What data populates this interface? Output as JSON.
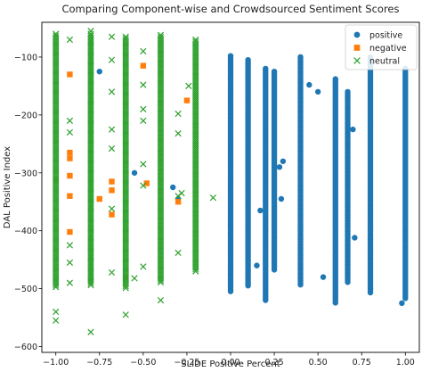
{
  "chart_data": {
    "type": "scatter",
    "title": "Comparing Component-wise and Crowdsourced Sentiment Scores",
    "xlabel": "SLIDE Positive Percent",
    "ylabel": "DAL Positive Index",
    "xlim": [
      -1.08,
      1.08
    ],
    "ylim": [
      -610,
      -40
    ],
    "x_ticks": [
      -1.0,
      -0.75,
      -0.5,
      -0.25,
      0.0,
      0.25,
      0.5,
      0.75,
      1.0
    ],
    "x_tick_labels": [
      "−1.00",
      "−0.75",
      "−0.50",
      "−0.25",
      "0.00",
      "0.25",
      "0.50",
      "0.75",
      "1.00"
    ],
    "y_ticks": [
      -100,
      -200,
      -300,
      -400,
      -500,
      -600
    ],
    "y_tick_labels": [
      "−100",
      "−200",
      "−300",
      "−400",
      "−500",
      "−600"
    ],
    "grid": false,
    "legend_position": "top-right",
    "series": [
      {
        "name": "positive",
        "color": "#1f77b4",
        "marker": "circle",
        "columns": [
          {
            "x": 0.0,
            "y_top": -98,
            "y_bottom": -505
          },
          {
            "x": 0.1,
            "y_top": -105,
            "y_bottom": -495
          },
          {
            "x": 0.2,
            "y_top": -120,
            "y_bottom": -520
          },
          {
            "x": 0.25,
            "y_top": -125,
            "y_bottom": -470
          },
          {
            "x": 0.4,
            "y_top": -100,
            "y_bottom": -495
          },
          {
            "x": 0.6,
            "y_top": -138,
            "y_bottom": -525
          },
          {
            "x": 0.8,
            "y_top": -100,
            "y_bottom": -510
          },
          {
            "x": 0.67,
            "y_top": -160,
            "y_bottom": -490
          },
          {
            "x": 1.0,
            "y_top": -120,
            "y_bottom": -518
          }
        ],
        "points": [
          {
            "x": -0.75,
            "y": -125
          },
          {
            "x": -0.55,
            "y": -300
          },
          {
            "x": -0.3,
            "y": -345
          },
          {
            "x": -0.33,
            "y": -325
          },
          {
            "x": 0.17,
            "y": -365
          },
          {
            "x": 0.15,
            "y": -460
          },
          {
            "x": 0.3,
            "y": -280
          },
          {
            "x": 0.28,
            "y": -290
          },
          {
            "x": 0.29,
            "y": -345
          },
          {
            "x": 0.5,
            "y": -160
          },
          {
            "x": 0.45,
            "y": -148
          },
          {
            "x": 0.53,
            "y": -480
          },
          {
            "x": 0.7,
            "y": -225
          },
          {
            "x": 0.71,
            "y": -412
          },
          {
            "x": 0.98,
            "y": -525
          }
        ]
      },
      {
        "name": "negative",
        "color": "#ff7f0e",
        "marker": "square",
        "points": [
          {
            "x": -0.92,
            "y": -130
          },
          {
            "x": -0.92,
            "y": -265
          },
          {
            "x": -0.92,
            "y": -275
          },
          {
            "x": -0.92,
            "y": -305
          },
          {
            "x": -0.92,
            "y": -340
          },
          {
            "x": -0.92,
            "y": -402
          },
          {
            "x": -0.75,
            "y": -345
          },
          {
            "x": -0.68,
            "y": -315
          },
          {
            "x": -0.68,
            "y": -330
          },
          {
            "x": -0.68,
            "y": -372
          },
          {
            "x": -0.6,
            "y": -480
          },
          {
            "x": -0.5,
            "y": -115
          },
          {
            "x": -0.48,
            "y": -318
          },
          {
            "x": -0.3,
            "y": -350
          },
          {
            "x": -0.25,
            "y": -175
          },
          {
            "x": -1.0,
            "y": -312
          }
        ]
      },
      {
        "name": "neutral",
        "color": "#2ca02c",
        "marker": "x",
        "columns": [
          {
            "x": -1.0,
            "y_top": -60,
            "y_bottom": -500
          },
          {
            "x": -0.8,
            "y_top": -60,
            "y_bottom": -495
          },
          {
            "x": -0.6,
            "y_top": -65,
            "y_bottom": -500
          },
          {
            "x": -0.4,
            "y_top": -62,
            "y_bottom": -490
          },
          {
            "x": -0.2,
            "y_top": -70,
            "y_bottom": -470
          }
        ],
        "points": [
          {
            "x": -1.0,
            "y": -540
          },
          {
            "x": -1.0,
            "y": -555
          },
          {
            "x": -0.8,
            "y": -575
          },
          {
            "x": -0.8,
            "y": -55
          },
          {
            "x": -0.92,
            "y": -70
          },
          {
            "x": -0.92,
            "y": -210
          },
          {
            "x": -0.92,
            "y": -230
          },
          {
            "x": -0.92,
            "y": -425
          },
          {
            "x": -0.92,
            "y": -455
          },
          {
            "x": -0.92,
            "y": -490
          },
          {
            "x": -0.68,
            "y": -65
          },
          {
            "x": -0.68,
            "y": -105
          },
          {
            "x": -0.68,
            "y": -160
          },
          {
            "x": -0.68,
            "y": -225
          },
          {
            "x": -0.68,
            "y": -258
          },
          {
            "x": -0.68,
            "y": -362
          },
          {
            "x": -0.68,
            "y": -472
          },
          {
            "x": -0.6,
            "y": -545
          },
          {
            "x": -0.55,
            "y": -482
          },
          {
            "x": -0.5,
            "y": -90
          },
          {
            "x": -0.5,
            "y": -148
          },
          {
            "x": -0.5,
            "y": -190
          },
          {
            "x": -0.5,
            "y": -210
          },
          {
            "x": -0.5,
            "y": -285
          },
          {
            "x": -0.5,
            "y": -322
          },
          {
            "x": -0.5,
            "y": -462
          },
          {
            "x": -0.4,
            "y": -520
          },
          {
            "x": -0.3,
            "y": -198
          },
          {
            "x": -0.3,
            "y": -232
          },
          {
            "x": -0.3,
            "y": -340
          },
          {
            "x": -0.3,
            "y": -438
          },
          {
            "x": -0.28,
            "y": -335
          },
          {
            "x": -0.24,
            "y": -150
          },
          {
            "x": -0.1,
            "y": -343
          }
        ]
      }
    ]
  }
}
